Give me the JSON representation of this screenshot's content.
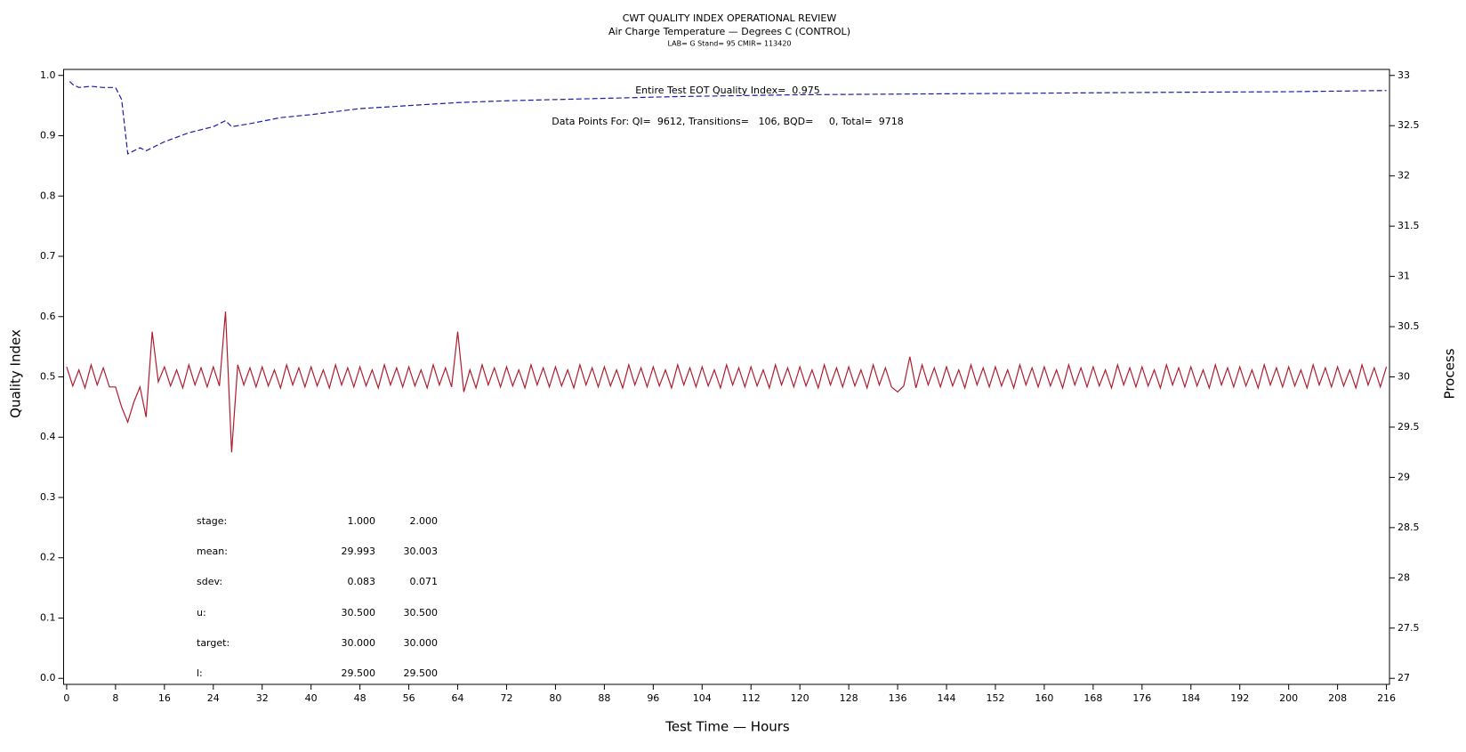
{
  "chart_data": {
    "type": "line",
    "title": "CWT QUALITY INDEX OPERATIONAL REVIEW",
    "subtitle": "Air Charge Temperature — Degrees C (CONTROL)",
    "subtitle2": "LAB= G Stand= 95 CMIR= 113420",
    "xlabel": "Test Time — Hours",
    "ylabel": "Quality Index",
    "y2label": "Process",
    "annotations": [
      "Entire Test EOT Quality Index=  0.975",
      "Data Points For: QI=  9612, Transitions=   106, BQD=     0, Total=  9718"
    ],
    "stats": [
      {
        "label": "stage:",
        "values": [
          "1.000",
          "2.000"
        ]
      },
      {
        "label": "mean:",
        "values": [
          "29.993",
          "30.003"
        ]
      },
      {
        "label": "sdev:",
        "values": [
          "0.083",
          "0.071"
        ]
      },
      {
        "label": "u:",
        "values": [
          "30.500",
          "30.500"
        ]
      },
      {
        "label": "target:",
        "values": [
          "30.000",
          "30.000"
        ]
      },
      {
        "label": "l:",
        "values": [
          "29.500",
          "29.500"
        ]
      }
    ],
    "xlim": [
      -0.5,
      216.5
    ],
    "xticks": [
      0,
      8,
      16,
      24,
      32,
      40,
      48,
      56,
      64,
      72,
      80,
      88,
      96,
      104,
      112,
      120,
      128,
      136,
      144,
      152,
      160,
      168,
      176,
      184,
      192,
      200,
      208,
      216
    ],
    "ylim": [
      -0.01,
      1.01
    ],
    "yticks": [
      {
        "value": 0,
        "label": "0.0"
      },
      0.1,
      0.2,
      0.3,
      0.4,
      0.5,
      0.6,
      0.7,
      0.8,
      0.9,
      {
        "value": 1,
        "label": "1.0"
      }
    ],
    "y2lim": [
      26.94,
      33.06
    ],
    "y2ticks": [
      27,
      27.5,
      28,
      28.5,
      29,
      29.5,
      30,
      30.5,
      31,
      31.5,
      32,
      32.5,
      33
    ],
    "series": [
      {
        "color": "#1c1ca6",
        "dashed": true,
        "x": [
          0.5,
          1,
          2,
          4,
          6,
          8,
          9,
          10,
          11,
          12,
          13,
          14,
          16,
          20,
          24,
          26,
          27,
          30,
          35,
          40,
          48,
          56,
          64,
          72,
          80,
          100,
          120,
          150,
          180,
          200,
          216
        ],
        "values": [
          0.99,
          0.985,
          0.98,
          0.982,
          0.98,
          0.98,
          0.96,
          0.87,
          0.875,
          0.88,
          0.875,
          0.88,
          0.89,
          0.905,
          0.915,
          0.925,
          0.915,
          0.92,
          0.93,
          0.935,
          0.945,
          0.95,
          0.955,
          0.958,
          0.96,
          0.965,
          0.968,
          0.97,
          0.972,
          0.973,
          0.975
        ]
      },
      {
        "color": "#b01c2e",
        "axis": "y2",
        "x": [
          0,
          1,
          2,
          3,
          4,
          5,
          6,
          7,
          8,
          9,
          10,
          11,
          12,
          13,
          14,
          15,
          16,
          17,
          18,
          19,
          20,
          21,
          22,
          23,
          24,
          25,
          26,
          27,
          28,
          29,
          30,
          31,
          32,
          33,
          34,
          35,
          36,
          37,
          38,
          39,
          40,
          41,
          42,
          43,
          44,
          45,
          46,
          47,
          48,
          49,
          50,
          51,
          52,
          53,
          54,
          55,
          56,
          57,
          58,
          59,
          60,
          61,
          62,
          63,
          64,
          65,
          66,
          67,
          68,
          69,
          70,
          71,
          72,
          73,
          74,
          75,
          76,
          77,
          78,
          79,
          80,
          81,
          82,
          83,
          84,
          85,
          86,
          87,
          88,
          89,
          90,
          91,
          92,
          93,
          94,
          95,
          96,
          97,
          98,
          99,
          100,
          101,
          102,
          103,
          104,
          105,
          106,
          107,
          108,
          109,
          110,
          111,
          112,
          113,
          114,
          115,
          116,
          117,
          118,
          119,
          120,
          121,
          122,
          123,
          124,
          125,
          126,
          127,
          128,
          129,
          130,
          131,
          132,
          133,
          134,
          135,
          136,
          137,
          138,
          139,
          140,
          141,
          142,
          143,
          144,
          145,
          146,
          147,
          148,
          149,
          150,
          151,
          152,
          153,
          154,
          155,
          156,
          157,
          158,
          159,
          160,
          161,
          162,
          163,
          164,
          165,
          166,
          167,
          168,
          169,
          170,
          171,
          172,
          173,
          174,
          175,
          176,
          177,
          178,
          179,
          180,
          181,
          182,
          183,
          184,
          185,
          186,
          187,
          188,
          189,
          190,
          191,
          192,
          193,
          194,
          195,
          196,
          197,
          198,
          199,
          200,
          201,
          202,
          203,
          204,
          205,
          206,
          207,
          208,
          209,
          210,
          211,
          212,
          213,
          214,
          215,
          216
        ],
        "values": [
          30.1,
          29.91,
          30.07,
          29.89,
          30.12,
          29.92,
          30.09,
          29.9,
          29.9,
          29.7,
          29.55,
          29.75,
          29.9,
          29.6,
          30.45,
          29.95,
          30.1,
          29.91,
          30.07,
          29.89,
          30.12,
          29.92,
          30.09,
          29.9,
          30.1,
          29.91,
          30.65,
          29.25,
          30.12,
          29.92,
          30.09,
          29.9,
          30.1,
          29.91,
          30.07,
          29.89,
          30.12,
          29.92,
          30.09,
          29.9,
          30.1,
          29.91,
          30.07,
          29.89,
          30.12,
          29.92,
          30.09,
          29.9,
          30.1,
          29.91,
          30.07,
          29.89,
          30.12,
          29.92,
          30.09,
          29.9,
          30.1,
          29.91,
          30.07,
          29.89,
          30.12,
          29.92,
          30.09,
          29.9,
          30.45,
          29.85,
          30.07,
          29.89,
          30.12,
          29.92,
          30.09,
          29.9,
          30.1,
          29.91,
          30.07,
          29.89,
          30.12,
          29.92,
          30.09,
          29.9,
          30.1,
          29.91,
          30.07,
          29.89,
          30.12,
          29.92,
          30.09,
          29.9,
          30.1,
          29.91,
          30.07,
          29.89,
          30.12,
          29.92,
          30.09,
          29.9,
          30.1,
          29.91,
          30.07,
          29.89,
          30.12,
          29.92,
          30.09,
          29.9,
          30.1,
          29.91,
          30.07,
          29.89,
          30.12,
          29.92,
          30.09,
          29.9,
          30.1,
          29.91,
          30.07,
          29.89,
          30.12,
          29.92,
          30.09,
          29.9,
          30.1,
          29.91,
          30.07,
          29.89,
          30.12,
          29.92,
          30.09,
          29.9,
          30.1,
          29.91,
          30.07,
          29.89,
          30.12,
          29.92,
          30.09,
          29.9,
          29.85,
          29.91,
          30.2,
          29.89,
          30.12,
          29.92,
          30.09,
          29.9,
          30.1,
          29.91,
          30.07,
          29.89,
          30.12,
          29.92,
          30.09,
          29.9,
          30.1,
          29.91,
          30.07,
          29.89,
          30.12,
          29.92,
          30.09,
          29.9,
          30.1,
          29.91,
          30.07,
          29.89,
          30.12,
          29.92,
          30.09,
          29.9,
          30.1,
          29.91,
          30.07,
          29.89,
          30.12,
          29.92,
          30.09,
          29.9,
          30.1,
          29.91,
          30.07,
          29.89,
          30.12,
          29.92,
          30.09,
          29.9,
          30.1,
          29.91,
          30.07,
          29.89,
          30.12,
          29.92,
          30.09,
          29.9,
          30.1,
          29.91,
          30.07,
          29.89,
          30.12,
          29.92,
          30.09,
          29.9,
          30.1,
          29.91,
          30.07,
          29.89,
          30.12,
          29.92,
          30.09,
          29.9,
          30.1,
          29.91,
          30.07,
          29.89,
          30.12,
          29.92,
          30.09,
          29.9,
          30.1
        ]
      }
    ]
  }
}
